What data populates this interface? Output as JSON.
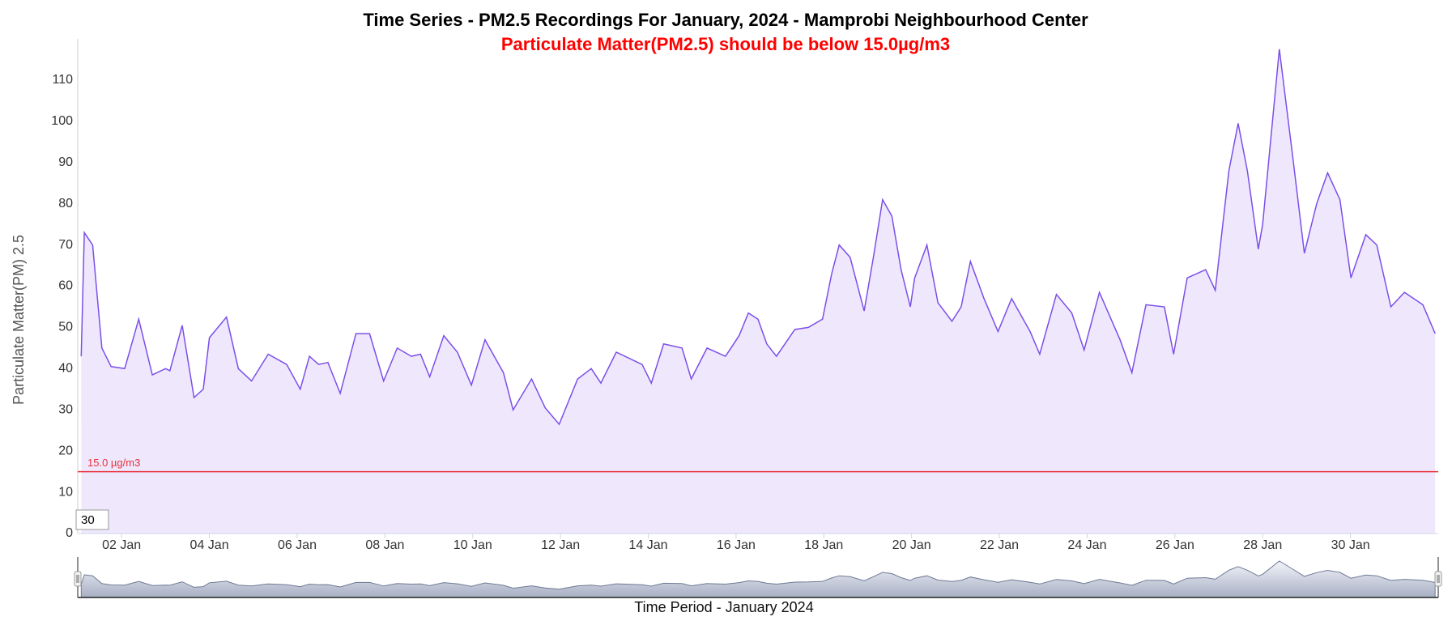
{
  "chart_data": {
    "type": "area",
    "title": "Time Series - PM2.5 Recordings For January, 2024 - Mamprobi Neighbourhood Center",
    "subtitle": "Particulate Matter(PM2.5) should be below 15.0µg/m3",
    "y_axis_label": "Particulate Matter(PM) 2.5",
    "x_axis_label": "Time Period - January 2024",
    "range_input": "30",
    "threshold": {
      "value": 15,
      "label": "15.0 µg/m3",
      "color": "#e8303a"
    },
    "x": [
      1.08,
      1.15,
      1.34,
      1.55,
      1.76,
      2.07,
      2.39,
      2.7,
      3.0,
      3.1,
      3.38,
      3.65,
      3.86,
      4.0,
      4.39,
      4.66,
      4.96,
      5.34,
      5.76,
      6.07,
      6.28,
      6.49,
      6.7,
      6.98,
      7.34,
      7.65,
      7.97,
      8.28,
      8.6,
      8.81,
      9.02,
      9.34,
      9.65,
      9.97,
      10.28,
      10.7,
      10.92,
      11.34,
      11.65,
      11.97,
      12.39,
      12.7,
      12.92,
      13.27,
      13.86,
      14.07,
      14.35,
      14.77,
      14.98,
      15.34,
      15.76,
      16.07,
      16.28,
      16.5,
      16.7,
      16.92,
      17.34,
      17.65,
      17.97,
      18.18,
      18.35,
      18.6,
      18.92,
      19.13,
      19.34,
      19.55,
      19.76,
      19.97,
      20.07,
      20.35,
      20.6,
      20.92,
      21.13,
      21.34,
      21.65,
      21.97,
      22.28,
      22.7,
      22.92,
      23.3,
      23.65,
      23.93,
      24.28,
      24.75,
      25.02,
      25.34,
      25.76,
      25.97,
      26.28,
      26.7,
      26.92,
      27.23,
      27.44,
      27.65,
      27.9,
      28.0,
      28.38,
      28.7,
      28.95,
      29.23,
      29.48,
      29.76,
      30.01,
      30.35,
      30.6,
      30.92,
      31.23,
      31.65,
      31.93
    ],
    "series": [
      {
        "name": "PM2.5",
        "color": "#7b4fe8",
        "fill": "#efe8fd",
        "values": [
          43,
          73,
          70,
          45,
          40.5,
          40,
          52,
          38.5,
          40,
          39.5,
          50.5,
          33,
          35,
          47.5,
          52.5,
          40,
          37,
          43.5,
          41,
          35,
          43,
          41,
          41.5,
          34,
          48.5,
          48.5,
          37,
          45,
          43,
          43.5,
          38,
          48,
          44,
          36,
          47,
          39,
          30,
          37.5,
          30.5,
          26.5,
          37.5,
          40,
          36.5,
          44,
          41,
          36.5,
          46,
          45,
          37.5,
          45,
          43,
          48,
          53.5,
          52,
          46,
          43,
          49.5,
          50,
          52,
          63,
          70,
          67,
          54,
          67,
          81,
          77,
          64,
          55,
          62,
          70,
          56,
          51.5,
          55,
          66,
          57,
          49,
          57,
          49,
          43.5,
          58,
          53.5,
          44.5,
          58.5,
          47,
          39,
          55.5,
          55,
          43.5,
          62,
          64,
          59,
          88,
          99.5,
          88,
          69,
          75,
          117.5,
          90,
          68,
          80,
          87.5,
          81,
          62,
          72.5,
          70,
          55,
          58.5,
          55.5,
          48.5
        ]
      }
    ],
    "xlim": [
      1,
      32
    ],
    "xticks": [
      {
        "value": 2,
        "label": "02 Jan"
      },
      {
        "value": 4,
        "label": "04 Jan"
      },
      {
        "value": 6,
        "label": "06 Jan"
      },
      {
        "value": 8,
        "label": "08 Jan"
      },
      {
        "value": 10,
        "label": "10 Jan"
      },
      {
        "value": 12,
        "label": "12 Jan"
      },
      {
        "value": 14,
        "label": "14 Jan"
      },
      {
        "value": 16,
        "label": "16 Jan"
      },
      {
        "value": 18,
        "label": "18 Jan"
      },
      {
        "value": 20,
        "label": "20 Jan"
      },
      {
        "value": 22,
        "label": "22 Jan"
      },
      {
        "value": 24,
        "label": "24 Jan"
      },
      {
        "value": 26,
        "label": "26 Jan"
      },
      {
        "value": 28,
        "label": "28 Jan"
      },
      {
        "value": 30,
        "label": "30 Jan"
      }
    ],
    "ylim": [
      0,
      120
    ],
    "yticks": [
      0,
      10,
      20,
      30,
      40,
      50,
      60,
      70,
      80,
      90,
      100,
      110
    ],
    "grid": false
  }
}
